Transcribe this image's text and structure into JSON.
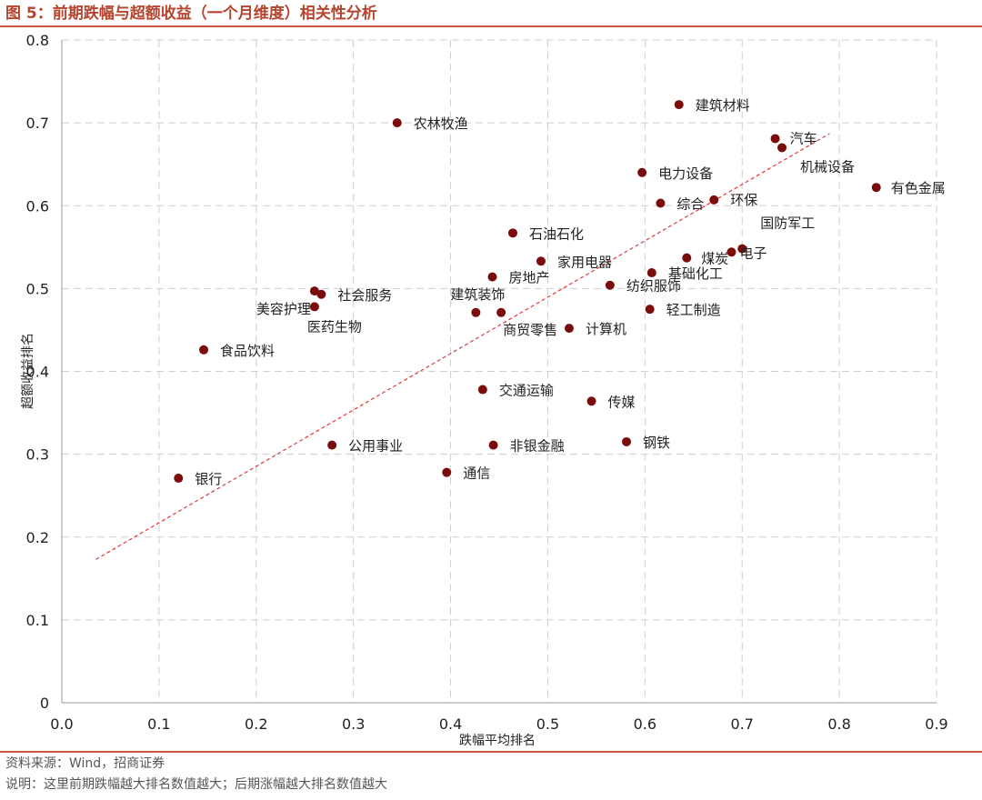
{
  "header": {
    "title": "图 5：前期跌幅与超额收益（一个月维度）相关性分析"
  },
  "footer": {
    "source": "资料来源：Wind，招商证券",
    "note": "说明：这里前期跌幅越大排名数值越大；后期涨幅越大排名数值越大"
  },
  "colors": {
    "accent": "#b5452e",
    "point": "#7a0c0c",
    "trend": "#e03a3a",
    "grid": "#cfcfcf"
  },
  "chart_data": {
    "type": "scatter",
    "xlabel": "跌幅平均排名",
    "ylabel": "超额收益排名",
    "xlim": [
      0,
      0.9
    ],
    "ylim": [
      0,
      0.8
    ],
    "xticks": [
      "0.0",
      "0.1",
      "0.2",
      "0.3",
      "0.4",
      "0.5",
      "0.6",
      "0.7",
      "0.8",
      "0.9"
    ],
    "yticks": [
      "0",
      "0.1",
      "0.2",
      "0.3",
      "0.4",
      "0.5",
      "0.6",
      "0.7",
      "0.8"
    ],
    "grid": true,
    "trendline": {
      "style": "dashed",
      "from": [
        0.035,
        0.173
      ],
      "to": [
        0.79,
        0.687
      ]
    },
    "points": [
      {
        "name": "建筑材料",
        "x": 0.635,
        "y": 0.722
      },
      {
        "name": "农林牧渔",
        "x": 0.345,
        "y": 0.7
      },
      {
        "name": "汽车",
        "x": 0.734,
        "y": 0.681
      },
      {
        "name": "机械设备",
        "x": 0.741,
        "y": 0.67
      },
      {
        "name": "电力设备",
        "x": 0.597,
        "y": 0.64
      },
      {
        "name": "有色金属",
        "x": 0.838,
        "y": 0.622
      },
      {
        "name": "综合",
        "x": 0.616,
        "y": 0.603
      },
      {
        "name": "环保",
        "x": 0.671,
        "y": 0.607
      },
      {
        "name": "石油石化",
        "x": 0.464,
        "y": 0.567
      },
      {
        "name": "国防军工",
        "x": 0.7,
        "y": 0.548
      },
      {
        "name": "电子",
        "x": 0.689,
        "y": 0.544
      },
      {
        "name": "煤炭",
        "x": 0.643,
        "y": 0.537
      },
      {
        "name": "家用电器",
        "x": 0.493,
        "y": 0.533
      },
      {
        "name": "基础化工",
        "x": 0.607,
        "y": 0.519
      },
      {
        "name": "房地产",
        "x": 0.443,
        "y": 0.514
      },
      {
        "name": "纺织服饰",
        "x": 0.564,
        "y": 0.504
      },
      {
        "name": "社会服务",
        "x": 0.267,
        "y": 0.493
      },
      {
        "name": "美容护理",
        "x": 0.26,
        "y": 0.497
      },
      {
        "name": "医药生物",
        "x": 0.26,
        "y": 0.478
      },
      {
        "name": "轻工制造",
        "x": 0.605,
        "y": 0.475
      },
      {
        "name": "建筑装饰",
        "x": 0.426,
        "y": 0.471
      },
      {
        "name": "商贸零售",
        "x": 0.452,
        "y": 0.471
      },
      {
        "name": "计算机",
        "x": 0.522,
        "y": 0.452
      },
      {
        "name": "食品饮料",
        "x": 0.146,
        "y": 0.426
      },
      {
        "name": "交通运输",
        "x": 0.433,
        "y": 0.378
      },
      {
        "name": "传媒",
        "x": 0.545,
        "y": 0.364
      },
      {
        "name": "钢铁",
        "x": 0.581,
        "y": 0.315
      },
      {
        "name": "公用事业",
        "x": 0.278,
        "y": 0.311
      },
      {
        "name": "非银金融",
        "x": 0.444,
        "y": 0.311
      },
      {
        "name": "通信",
        "x": 0.396,
        "y": 0.278
      },
      {
        "name": "银行",
        "x": 0.12,
        "y": 0.271
      }
    ]
  }
}
